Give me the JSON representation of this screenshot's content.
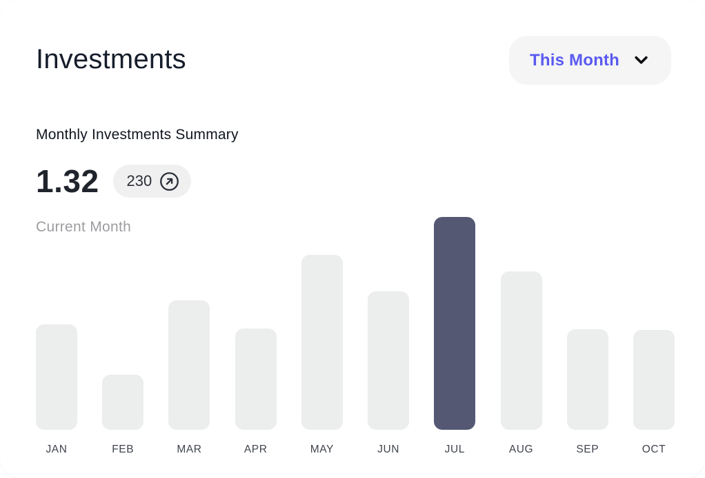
{
  "card": {
    "title": "Investments"
  },
  "period_selector": {
    "label": "This Month"
  },
  "summary": {
    "section_label": "Monthly Investments Summary",
    "value": "1.32",
    "badge_count": "230",
    "period_caption": "Current Month"
  },
  "chart_data": {
    "type": "bar",
    "title": "Monthly Investments Summary",
    "categories": [
      "JAN",
      "FEB",
      "MAR",
      "APR",
      "MAY",
      "JUN",
      "JUL",
      "AUG",
      "SEP",
      "OCT"
    ],
    "values": [
      153,
      80,
      188,
      147,
      254,
      201,
      309,
      230,
      146,
      145
    ],
    "highlighted_category": "JUL",
    "highlighted_index": 6,
    "xlabel": "",
    "ylabel": "",
    "ylim": [
      0,
      309
    ],
    "grid": false,
    "legend": "none",
    "bar_color": "#ECEDED",
    "highlight_color": "#555873"
  },
  "colors": {
    "accent": "#5A5AF0",
    "title_text": "#161D2B",
    "muted_text": "#9D9DA1",
    "axis_label_text": "#3F444C",
    "control_bg": "#F5F5F6",
    "badge_bg": "#F0F0F1",
    "bar_default": "#ECEDED",
    "bar_highlight": "#555873"
  }
}
